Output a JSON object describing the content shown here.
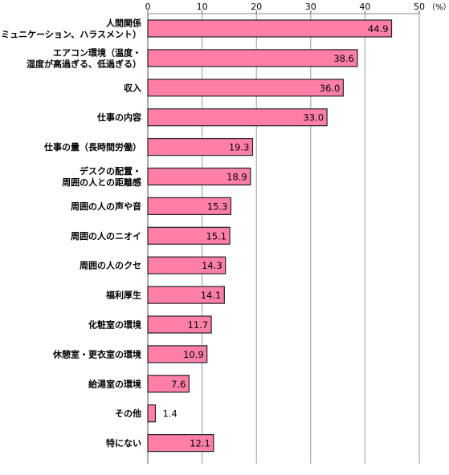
{
  "chart_data": {
    "type": "bar",
    "orientation": "horizontal",
    "unit_label": "（%）",
    "xlim": [
      0,
      50
    ],
    "x_ticks": [
      0,
      10,
      20,
      30,
      40,
      50
    ],
    "grid": true,
    "bar_color": "#ff7fa7",
    "bar_border": "#222222",
    "categories": [
      [
        "人間関係",
        "（コミュニケーション、ハラスメント）"
      ],
      [
        "エアコン環境（温度・",
        "湿度が高過ぎる、低過ぎる）"
      ],
      [
        "収入"
      ],
      [
        "仕事の内容"
      ],
      [
        "仕事の量（長時間労働）"
      ],
      [
        "デスクの配置・",
        "周囲の人との距離感"
      ],
      [
        "周囲の人の声や音"
      ],
      [
        "周囲の人のニオイ"
      ],
      [
        "周囲の人のクセ"
      ],
      [
        "福利厚生"
      ],
      [
        "化粧室の環境"
      ],
      [
        "休憩室・更衣室の環境"
      ],
      [
        "給湯室の環境"
      ],
      [
        "その他"
      ],
      [
        "特にない"
      ]
    ],
    "values": [
      44.9,
      38.6,
      36.0,
      33.0,
      19.3,
      18.9,
      15.3,
      15.1,
      14.3,
      14.1,
      11.7,
      10.9,
      7.6,
      1.4,
      12.1
    ],
    "value_labels": [
      "44.9",
      "38.6",
      "36.0",
      "33.0",
      "19.3",
      "18.9",
      "15.3",
      "15.1",
      "14.3",
      "14.1",
      "11.7",
      "10.9",
      "7.6",
      "1.4",
      "12.1"
    ]
  }
}
